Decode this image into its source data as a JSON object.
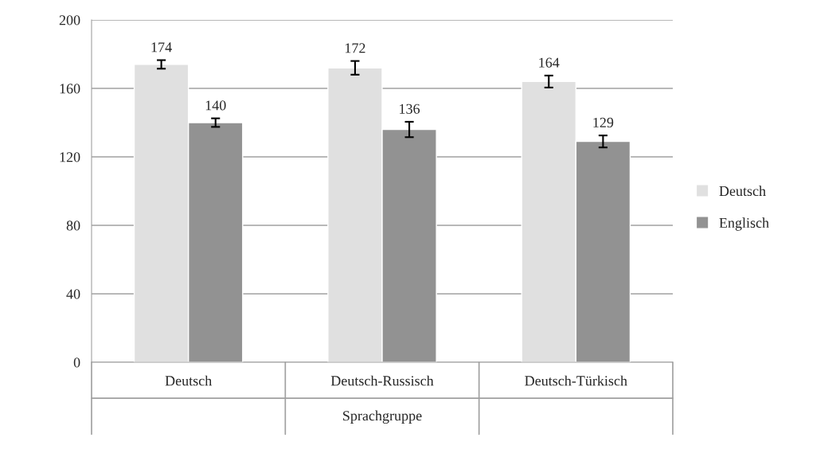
{
  "chart_data": {
    "type": "bar",
    "xlabel": "Sprachgruppe",
    "categories": [
      "Deutsch",
      "Deutsch-Russisch",
      "Deutsch-Türkisch"
    ],
    "series": [
      {
        "name": "Deutsch",
        "color": "#e0e0e0",
        "values": [
          174,
          172,
          164
        ],
        "errors": [
          2.5,
          4,
          3.5
        ]
      },
      {
        "name": "Englisch",
        "color": "#929292",
        "values": [
          140,
          136,
          129
        ],
        "errors": [
          2.5,
          4.5,
          3.5
        ]
      }
    ],
    "data_labels": true,
    "ylim": [
      0,
      200
    ],
    "yticks": [
      0,
      40,
      80,
      120,
      160,
      200
    ],
    "grid": "y",
    "legend": "right"
  }
}
